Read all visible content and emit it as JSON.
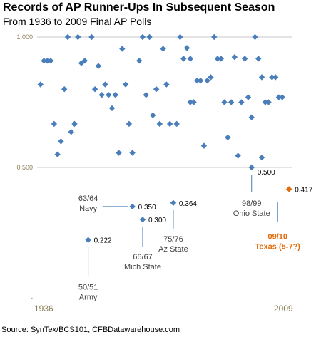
{
  "chart_data": {
    "type": "scatter",
    "title": "Records of AP Runner-Ups In Subsequent Season",
    "subtitle": "From 1936 to 2009 Final AP Polls",
    "xlabel": "",
    "ylabel": "",
    "xlim": [
      1935,
      2010
    ],
    "ylim": [
      0,
      1
    ],
    "y_ticks": [
      {
        "value": 1.0,
        "label": "1.000"
      },
      {
        "value": 0.5,
        "label": "0.500"
      },
      {
        "value": 0.0,
        "label": "-"
      }
    ],
    "x_tick_labels": [
      "1936",
      "2009"
    ],
    "grid": "horizontal",
    "series": [
      {
        "color": "#4a7ebb",
        "points": [
          {
            "x": 1936,
            "y": 0.818
          },
          {
            "x": 1937,
            "y": 0.909
          },
          {
            "x": 1938,
            "y": 0.909
          },
          {
            "x": 1939,
            "y": 0.909
          },
          {
            "x": 1940,
            "y": 0.667
          },
          {
            "x": 1941,
            "y": 0.55
          },
          {
            "x": 1942,
            "y": 0.6
          },
          {
            "x": 1943,
            "y": 0.8
          },
          {
            "x": 1944,
            "y": 1.0
          },
          {
            "x": 1945,
            "y": 0.636
          },
          {
            "x": 1946,
            "y": 0.667
          },
          {
            "x": 1947,
            "y": 1.0
          },
          {
            "x": 1948,
            "y": 0.9
          },
          {
            "x": 1949,
            "y": 0.909
          },
          {
            "x": 1950,
            "y": 0.222
          },
          {
            "x": 1951,
            "y": 1.0
          },
          {
            "x": 1952,
            "y": 0.8
          },
          {
            "x": 1953,
            "y": 0.889
          },
          {
            "x": 1954,
            "y": 0.778
          },
          {
            "x": 1955,
            "y": 0.818
          },
          {
            "x": 1956,
            "y": 0.778
          },
          {
            "x": 1957,
            "y": 0.727
          },
          {
            "x": 1958,
            "y": 0.778
          },
          {
            "x": 1959,
            "y": 0.556
          },
          {
            "x": 1960,
            "y": 0.955
          },
          {
            "x": 1961,
            "y": 0.818
          },
          {
            "x": 1962,
            "y": 0.667
          },
          {
            "x": 1963,
            "y": 0.556
          },
          {
            "x": 1963,
            "y": 0.35
          },
          {
            "x": 1965,
            "y": 0.909
          },
          {
            "x": 1966,
            "y": 1.0
          },
          {
            "x": 1966,
            "y": 0.3
          },
          {
            "x": 1967,
            "y": 0.778
          },
          {
            "x": 1968,
            "y": 1.0
          },
          {
            "x": 1969,
            "y": 0.7
          },
          {
            "x": 1970,
            "y": 0.8
          },
          {
            "x": 1971,
            "y": 0.667
          },
          {
            "x": 1972,
            "y": 0.955
          },
          {
            "x": 1973,
            "y": 0.818
          },
          {
            "x": 1974,
            "y": 0.667
          },
          {
            "x": 1975,
            "y": 0.364
          },
          {
            "x": 1976,
            "y": 0.667
          },
          {
            "x": 1977,
            "y": 1.0
          },
          {
            "x": 1978,
            "y": 0.917
          },
          {
            "x": 1979,
            "y": 0.958
          },
          {
            "x": 1980,
            "y": 0.917
          },
          {
            "x": 1980,
            "y": 0.75
          },
          {
            "x": 1981,
            "y": 0.75
          },
          {
            "x": 1982,
            "y": 0.833
          },
          {
            "x": 1983,
            "y": 0.833
          },
          {
            "x": 1984,
            "y": 0.583
          },
          {
            "x": 1985,
            "y": 0.833
          },
          {
            "x": 1986,
            "y": 0.846
          },
          {
            "x": 1987,
            "y": 1.0
          },
          {
            "x": 1988,
            "y": 0.917
          },
          {
            "x": 1989,
            "y": 0.917
          },
          {
            "x": 1990,
            "y": 0.75
          },
          {
            "x": 1991,
            "y": 0.615
          },
          {
            "x": 1992,
            "y": 0.75
          },
          {
            "x": 1993,
            "y": 0.923
          },
          {
            "x": 1994,
            "y": 0.545
          },
          {
            "x": 1995,
            "y": 0.75
          },
          {
            "x": 1996,
            "y": 0.917
          },
          {
            "x": 1997,
            "y": 0.769
          },
          {
            "x": 1998,
            "y": 0.692
          },
          {
            "x": 1998,
            "y": 0.5
          },
          {
            "x": 1999,
            "y": 1.0
          },
          {
            "x": 2000,
            "y": 0.917
          },
          {
            "x": 2001,
            "y": 0.846
          },
          {
            "x": 2001,
            "y": 0.538
          },
          {
            "x": 2002,
            "y": 0.75
          },
          {
            "x": 2003,
            "y": 0.75
          },
          {
            "x": 2004,
            "y": 0.846
          },
          {
            "x": 2005,
            "y": 0.846
          },
          {
            "x": 2006,
            "y": 0.769
          },
          {
            "x": 2007,
            "y": 0.769
          }
        ]
      },
      {
        "color": "#e26b0a",
        "points": [
          {
            "x": 2009,
            "y": 0.417
          }
        ]
      }
    ],
    "annotations": [
      {
        "x": 1950,
        "y": 0.222,
        "value_label": "0.222",
        "season": "50/51",
        "team": "Army"
      },
      {
        "x": 1963,
        "y": 0.35,
        "value_label": "0.350",
        "season": "63/64",
        "team": "Navy"
      },
      {
        "x": 1966,
        "y": 0.3,
        "value_label": "0.300",
        "season": "66/67",
        "team": "Mich State"
      },
      {
        "x": 1975,
        "y": 0.364,
        "value_label": "0.364",
        "season": "75/76",
        "team": "Az State"
      },
      {
        "x": 1998,
        "y": 0.5,
        "value_label": "0.500",
        "season": "98/99",
        "team": "Ohio State"
      },
      {
        "x": 2009,
        "y": 0.417,
        "value_label": "0.417",
        "season": "09/10",
        "team": "Texas (5-7?)",
        "highlight": true
      }
    ]
  },
  "source": "Source: SynTex/BCS101, CFBDatawarehouse.com"
}
